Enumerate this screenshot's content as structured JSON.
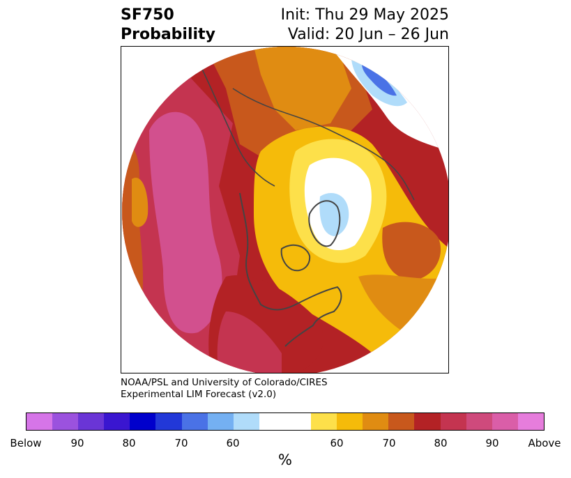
{
  "title": {
    "left_line1": "SF750",
    "left_line2": "Probability",
    "right_line1": "Init: Thu 29 May 2025",
    "right_line2": "Valid: 20 Jun – 26 Jun"
  },
  "credit": {
    "line1": "NOAA/PSL and University of Colorado/CIRES",
    "line2": "Experimental LIM Forecast (v2.0)"
  },
  "colorbar": {
    "unit_label": "%",
    "colors": [
      "#d675e8",
      "#9b52de",
      "#6a35d6",
      "#3a16d0",
      "#0000cc",
      "#2238d8",
      "#4a72e6",
      "#74b0f2",
      "#b0dcfa",
      "#ffffff",
      "#ffffff",
      "#fde04a",
      "#f5bb0a",
      "#e08c12",
      "#c8581c",
      "#b32225",
      "#c43450",
      "#cf4a7c",
      "#da5ea8",
      "#e67ddc"
    ],
    "tick_labels": [
      "Below",
      "90",
      "80",
      "70",
      "60",
      "60",
      "70",
      "80",
      "90",
      "Above"
    ]
  },
  "map": {
    "projection": "north-polar-stereographic",
    "palette": {
      "magenta": "#d2508e",
      "crimson": "#c43450",
      "red": "#b32225",
      "rust": "#c8581c",
      "orange": "#e08c12",
      "gold": "#f5bb0a",
      "yellow": "#fde04a",
      "white": "#ffffff",
      "light_blue": "#b0dcfa",
      "sky_blue": "#74b0f2",
      "blue": "#4a72e6",
      "coastline": "#444444"
    }
  }
}
